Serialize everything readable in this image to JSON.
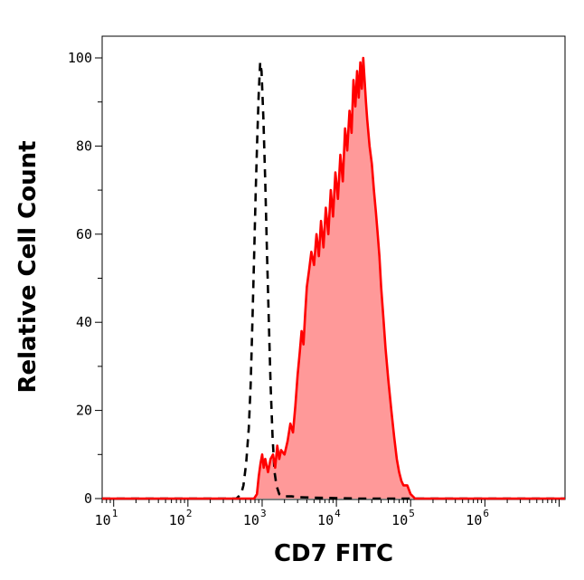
{
  "chart_data": {
    "type": "area",
    "title": "",
    "xlabel": "CD7 FITC",
    "ylabel": "Relative Cell Count",
    "x_scale": "log",
    "xlim": [
      7,
      12000000
    ],
    "ylim": [
      0,
      100
    ],
    "x_ticks": [
      {
        "base": "10",
        "exp": "1",
        "value": 10
      },
      {
        "base": "10",
        "exp": "2",
        "value": 100
      },
      {
        "base": "10",
        "exp": "3",
        "value": 1000
      },
      {
        "base": "10",
        "exp": "4",
        "value": 10000
      },
      {
        "base": "10",
        "exp": "5",
        "value": 100000
      },
      {
        "base": "10",
        "exp": "6",
        "value": 1000000
      }
    ],
    "y_ticks": [
      0,
      20,
      40,
      60,
      80,
      100
    ],
    "grid": false,
    "legend": "none",
    "series": [
      {
        "style": "dashed-black-line",
        "color": "#000000",
        "points": [
          [
            7,
            0
          ],
          [
            100,
            0
          ],
          [
            450,
            0
          ],
          [
            520,
            1
          ],
          [
            560,
            3
          ],
          [
            610,
            8
          ],
          [
            660,
            16
          ],
          [
            700,
            26
          ],
          [
            740,
            40
          ],
          [
            780,
            55
          ],
          [
            820,
            70
          ],
          [
            860,
            82
          ],
          [
            900,
            92
          ],
          [
            940,
            99
          ],
          [
            980,
            97
          ],
          [
            1040,
            86
          ],
          [
            1100,
            72
          ],
          [
            1160,
            56
          ],
          [
            1230,
            40
          ],
          [
            1300,
            26
          ],
          [
            1380,
            14
          ],
          [
            1470,
            6
          ],
          [
            1560,
            3
          ],
          [
            1700,
            1
          ],
          [
            1900,
            0.5
          ],
          [
            2500,
            0.5
          ],
          [
            3200,
            0.3
          ],
          [
            5000,
            0.2
          ],
          [
            20000,
            0
          ],
          [
            12000000,
            0
          ]
        ]
      },
      {
        "style": "red-filled-area",
        "color": "#ff0000",
        "fill": "#ff9999",
        "points": [
          [
            7,
            0
          ],
          [
            500,
            0
          ],
          [
            780,
            0
          ],
          [
            850,
            1
          ],
          [
            900,
            5
          ],
          [
            950,
            8
          ],
          [
            1000,
            10
          ],
          [
            1050,
            7
          ],
          [
            1100,
            9
          ],
          [
            1200,
            6
          ],
          [
            1300,
            9
          ],
          [
            1400,
            10
          ],
          [
            1500,
            7
          ],
          [
            1600,
            12
          ],
          [
            1700,
            9
          ],
          [
            1800,
            11
          ],
          [
            2000,
            10
          ],
          [
            2200,
            13
          ],
          [
            2400,
            17
          ],
          [
            2600,
            15
          ],
          [
            2800,
            21
          ],
          [
            3000,
            28
          ],
          [
            3200,
            33
          ],
          [
            3400,
            38
          ],
          [
            3600,
            35
          ],
          [
            3800,
            42
          ],
          [
            4000,
            48
          ],
          [
            4300,
            52
          ],
          [
            4600,
            56
          ],
          [
            5000,
            53
          ],
          [
            5400,
            60
          ],
          [
            5800,
            55
          ],
          [
            6200,
            63
          ],
          [
            6700,
            57
          ],
          [
            7200,
            66
          ],
          [
            7800,
            60
          ],
          [
            8400,
            70
          ],
          [
            9000,
            64
          ],
          [
            9700,
            74
          ],
          [
            10500,
            68
          ],
          [
            11300,
            78
          ],
          [
            12200,
            72
          ],
          [
            13100,
            84
          ],
          [
            14000,
            79
          ],
          [
            15000,
            88
          ],
          [
            16000,
            83
          ],
          [
            17000,
            95
          ],
          [
            18000,
            89
          ],
          [
            19000,
            97
          ],
          [
            20000,
            91
          ],
          [
            21000,
            99
          ],
          [
            22000,
            93
          ],
          [
            23000,
            100
          ],
          [
            24000,
            95
          ],
          [
            25000,
            90
          ],
          [
            26000,
            86
          ],
          [
            28000,
            80
          ],
          [
            30000,
            76
          ],
          [
            32000,
            70
          ],
          [
            34000,
            65
          ],
          [
            36000,
            60
          ],
          [
            38000,
            55
          ],
          [
            40000,
            48
          ],
          [
            43000,
            41
          ],
          [
            46000,
            34
          ],
          [
            50000,
            27
          ],
          [
            55000,
            20
          ],
          [
            60000,
            14
          ],
          [
            65000,
            9
          ],
          [
            70000,
            6
          ],
          [
            75000,
            4
          ],
          [
            80000,
            3
          ],
          [
            90000,
            3
          ],
          [
            100000,
            1
          ],
          [
            115000,
            0
          ],
          [
            12000000,
            0
          ]
        ]
      }
    ]
  }
}
